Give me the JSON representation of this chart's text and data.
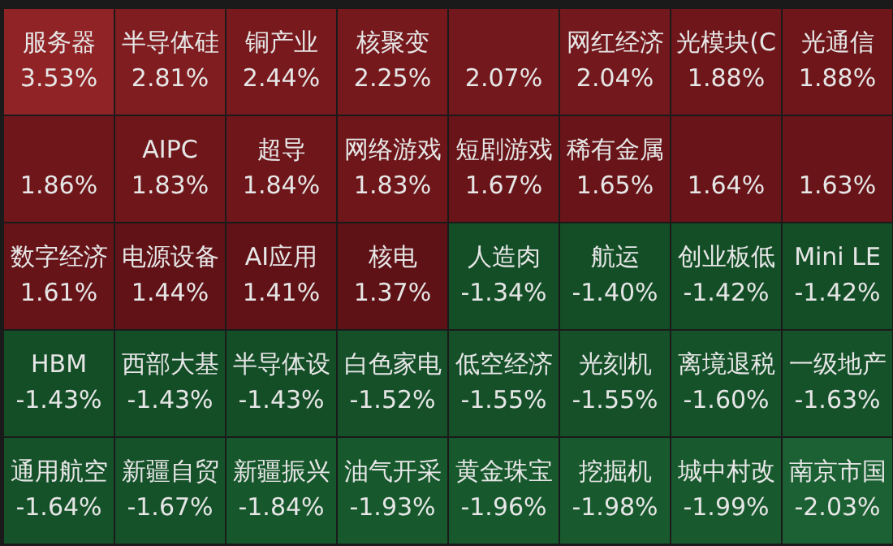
{
  "chart_data": {
    "type": "other",
    "categories": [
      "服务器",
      "半导体硅",
      "铜产业",
      "核聚变",
      null,
      "网红经济",
      "光模块(C",
      "光通信",
      null,
      "AIPC",
      "超导",
      "网络游戏",
      "短剧游戏",
      "稀有金属",
      null,
      null,
      "数字经济",
      "电源设备",
      "AI应用",
      "核电",
      "人造肉",
      "航运",
      "创业板低",
      "Mini LE",
      "HBM",
      "西部大基",
      "半导体设",
      "白色家电",
      "低空经济",
      "光刻机",
      "离境退税",
      "一级地产",
      "通用航空",
      "新疆自贸",
      "新疆振兴",
      "油气开采",
      "黄金珠宝",
      "挖掘机",
      "城中村改",
      "南京市国"
    ],
    "values": [
      3.53,
      2.81,
      2.44,
      2.25,
      2.07,
      2.04,
      1.88,
      1.88,
      1.86,
      1.83,
      1.84,
      1.83,
      1.67,
      1.65,
      1.64,
      1.63,
      1.61,
      1.44,
      1.41,
      1.37,
      -1.34,
      -1.4,
      -1.42,
      -1.42,
      -1.43,
      -1.43,
      -1.43,
      -1.52,
      -1.55,
      -1.55,
      -1.6,
      -1.63,
      -1.64,
      -1.67,
      -1.84,
      -1.93,
      -1.96,
      -1.98,
      -1.99,
      -2.03
    ],
    "value_labels": [
      "3.53%",
      "2.81%",
      "2.44%",
      "2.25%",
      "2.07%",
      "2.04%",
      "1.88%",
      "1.88%",
      "1.86%",
      "1.83%",
      "1.84%",
      "1.83%",
      "1.67%",
      "1.65%",
      "1.64%",
      "1.63%",
      "1.61%",
      "1.44%",
      "1.41%",
      "1.37%",
      "-1.34%",
      "-1.40%",
      "-1.42%",
      "-1.42%",
      "-1.43%",
      "-1.43%",
      "-1.43%",
      "-1.52%",
      "-1.55%",
      "-1.55%",
      "-1.60%",
      "-1.63%",
      "-1.64%",
      "-1.67%",
      "-1.84%",
      "-1.93%",
      "-1.96%",
      "-1.98%",
      "-1.99%",
      "-2.03%"
    ],
    "colors": [
      "#8a1618",
      "#7a1216",
      "#731014",
      "#701014",
      "#6e1014",
      "#6e1014",
      "#6a0f13",
      "#6a0f13",
      "#6a0f13",
      "#6a0f13",
      "#6a0f13",
      "#6a0f13",
      "#640e12",
      "#640e12",
      "#640e12",
      "#640e12",
      "#620e12",
      "#5e0d11",
      "#5e0d11",
      "#5c0d11",
      "#0f4a22",
      "#0f4a22",
      "#0f4a22",
      "#0f4a22",
      "#0f4a22",
      "#0f4a22",
      "#0f4a22",
      "#0f4c23",
      "#0f4c23",
      "#0f4c23",
      "#0f4e24",
      "#0f4e24",
      "#0f4e24",
      "#0f4e24",
      "#105226",
      "#105427",
      "#105427",
      "#105427",
      "#105427",
      "#145c2c"
    ]
  }
}
